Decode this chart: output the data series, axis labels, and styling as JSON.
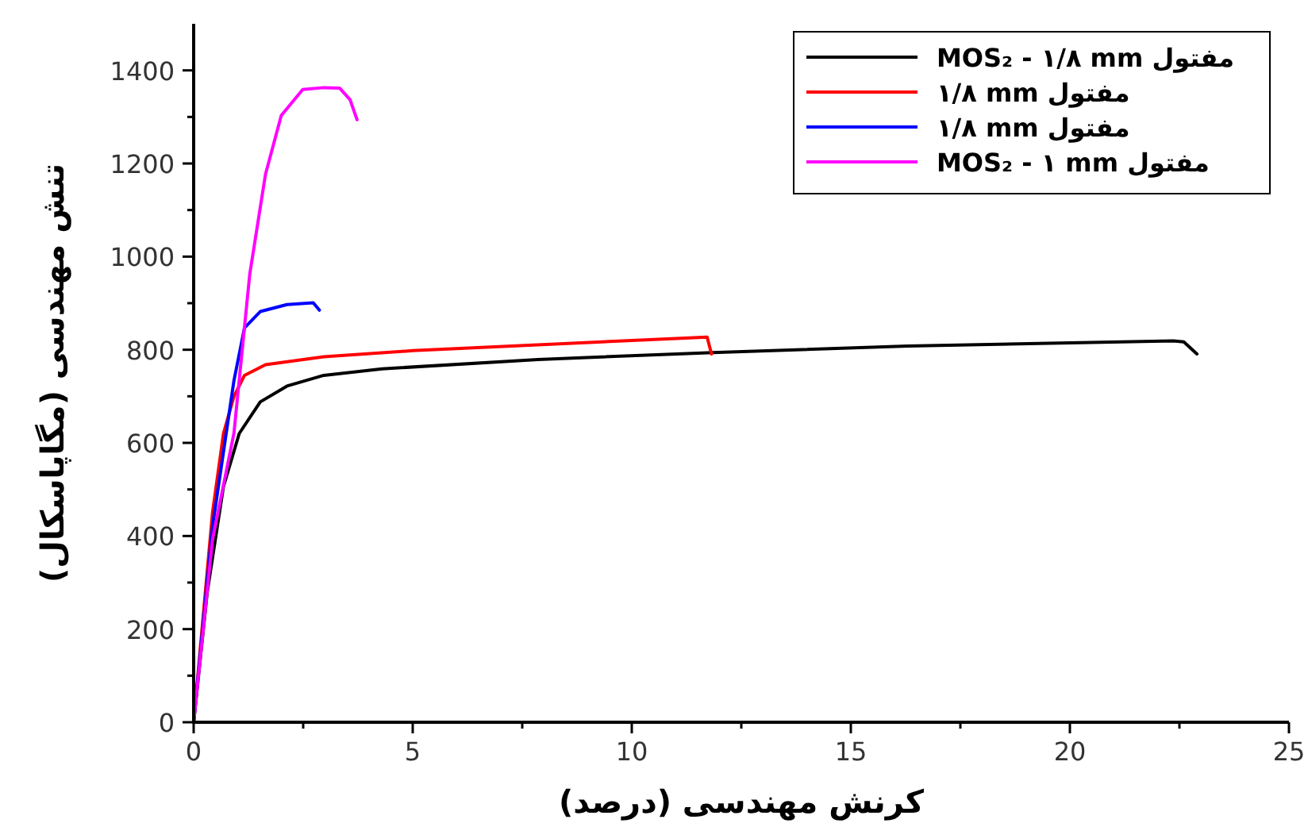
{
  "chart_data": {
    "type": "line",
    "xlabel": "کرنش مهندسی (درصد)",
    "ylabel": "تنش مهندسی (مگاپاسکال)",
    "xlim": [
      0,
      25
    ],
    "ylim": [
      0,
      1500
    ],
    "xticks": [
      0,
      {
        "value": 2.5,
        "label": null
      },
      5,
      {
        "value": 7.5,
        "label": null
      },
      10,
      {
        "value": 12.5,
        "label": null
      },
      15,
      {
        "value": 17.5,
        "label": null
      },
      20,
      {
        "value": 22.5,
        "label": null
      },
      25
    ],
    "yticks": [
      0,
      {
        "value": 100,
        "label": null
      },
      200,
      {
        "value": 300,
        "label": null
      },
      400,
      {
        "value": 500,
        "label": null
      },
      600,
      {
        "value": 700,
        "label": null
      },
      800,
      {
        "value": 900,
        "label": null
      },
      1000,
      {
        "value": 1100,
        "label": null
      },
      1200,
      {
        "value": 1300,
        "label": null
      },
      1400
    ],
    "legend": "top right",
    "grid": false,
    "marker": "none",
    "line_style": "solid",
    "series": [
      {
        "name": "MOS₂ - ۱/۸ mm مفتول",
        "color": "#000000",
        "x": [
          0,
          0.31,
          0.68,
          1.04,
          1.52,
          2.13,
          2.97,
          4.3,
          7.86,
          11.85,
          16.3,
          22.36,
          22.6,
          22.9
        ],
        "values": [
          0,
          279,
          506,
          620,
          688,
          722,
          745,
          759,
          779,
          794,
          808,
          819,
          817,
          791
        ]
      },
      {
        "name": "۱/۸ mm مفتول",
        "color": "#ff0000",
        "x": [
          0,
          0.43,
          0.68,
          0.92,
          1.16,
          1.64,
          2.97,
          5,
          10,
          11.72,
          11.82
        ],
        "values": [
          0,
          450,
          620,
          700,
          745,
          768,
          785,
          798,
          820,
          827,
          791
        ]
      },
      {
        "name": "۱/۸ mm مفتول",
        "color": "#0000ff",
        "x": [
          0,
          0.43,
          0.92,
          1.16,
          1.52,
          2.13,
          2.73,
          2.87
        ],
        "values": [
          0,
          420,
          734,
          847,
          882,
          897,
          901,
          885
        ]
      },
      {
        "name": "MOS₂ - ۱ mm مفتول",
        "color": "#ff00ff",
        "x": [
          0,
          0.43,
          0.92,
          1.28,
          1.64,
          2.0,
          2.49,
          2.97,
          3.33,
          3.57,
          3.73
        ],
        "values": [
          0,
          392,
          621,
          962,
          1177,
          1303,
          1359,
          1363,
          1362,
          1337,
          1294
        ]
      }
    ]
  }
}
